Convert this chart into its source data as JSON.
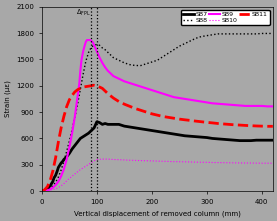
{
  "title": "",
  "xlabel": "Vertical displacement of removed column (mm)",
  "ylabel": "Strain (με)",
  "xlim": [
    0,
    420
  ],
  "ylim": [
    0,
    2100
  ],
  "xticks": [
    0,
    100,
    200,
    300,
    400
  ],
  "yticks": [
    0,
    300,
    600,
    900,
    1200,
    1500,
    1800,
    2100
  ],
  "vline_x1": 90,
  "vline_x2": 100,
  "vline_label": "Δ_FPL",
  "background_color": "#a8a8a8",
  "series": {
    "SB7": {
      "color": "#000000",
      "lw": 2.0,
      "ls": "solid",
      "x": [
        0,
        5,
        10,
        15,
        20,
        22,
        25,
        28,
        30,
        35,
        38,
        40,
        45,
        50,
        55,
        60,
        65,
        70,
        75,
        80,
        85,
        90,
        95,
        100,
        105,
        110,
        115,
        120,
        130,
        140,
        150,
        160,
        170,
        180,
        190,
        200,
        210,
        220,
        230,
        240,
        250,
        260,
        270,
        280,
        290,
        300,
        310,
        320,
        330,
        340,
        350,
        360,
        370,
        380,
        390,
        400,
        410,
        420
      ],
      "y": [
        0,
        10,
        30,
        60,
        110,
        150,
        180,
        230,
        270,
        320,
        340,
        360,
        390,
        430,
        480,
        520,
        560,
        600,
        620,
        640,
        660,
        690,
        720,
        790,
        780,
        760,
        770,
        760,
        760,
        760,
        740,
        730,
        720,
        710,
        700,
        690,
        680,
        670,
        660,
        650,
        640,
        630,
        625,
        620,
        615,
        610,
        600,
        595,
        590,
        585,
        580,
        575,
        575,
        575,
        580,
        580,
        580,
        580
      ]
    },
    "SB8": {
      "color": "#000000",
      "lw": 1.0,
      "ls": "dotted",
      "x": [
        0,
        5,
        10,
        15,
        20,
        25,
        30,
        35,
        40,
        45,
        50,
        55,
        60,
        65,
        70,
        75,
        80,
        85,
        90,
        95,
        100,
        105,
        110,
        115,
        120,
        130,
        140,
        150,
        160,
        170,
        180,
        190,
        200,
        210,
        220,
        230,
        240,
        250,
        260,
        270,
        280,
        290,
        300,
        310,
        320,
        330,
        340,
        350,
        360,
        370,
        380,
        390,
        400,
        410,
        420
      ],
      "y": [
        0,
        5,
        15,
        30,
        60,
        100,
        160,
        240,
        340,
        450,
        570,
        700,
        840,
        990,
        1160,
        1330,
        1480,
        1580,
        1640,
        1660,
        1670,
        1660,
        1630,
        1610,
        1580,
        1520,
        1490,
        1460,
        1440,
        1430,
        1430,
        1450,
        1470,
        1490,
        1530,
        1570,
        1610,
        1650,
        1680,
        1710,
        1740,
        1760,
        1770,
        1780,
        1790,
        1790,
        1790,
        1790,
        1790,
        1790,
        1790,
        1790,
        1795,
        1795,
        1795
      ]
    },
    "SB9": {
      "color": "#ff00ff",
      "lw": 1.5,
      "ls": "solid",
      "x": [
        0,
        5,
        10,
        15,
        20,
        25,
        30,
        35,
        40,
        45,
        50,
        55,
        60,
        65,
        68,
        70,
        72,
        75,
        78,
        80,
        82,
        85,
        88,
        90,
        93,
        95,
        100,
        105,
        110,
        115,
        120,
        130,
        140,
        150,
        160,
        170,
        180,
        190,
        200,
        210,
        220,
        230,
        240,
        250,
        260,
        270,
        280,
        290,
        300,
        310,
        320,
        330,
        340,
        350,
        360,
        370,
        380,
        390,
        400,
        410,
        420
      ],
      "y": [
        0,
        5,
        10,
        20,
        40,
        70,
        110,
        170,
        250,
        360,
        500,
        660,
        850,
        1080,
        1220,
        1370,
        1490,
        1590,
        1660,
        1700,
        1720,
        1720,
        1720,
        1710,
        1690,
        1660,
        1590,
        1520,
        1460,
        1410,
        1370,
        1310,
        1280,
        1250,
        1230,
        1210,
        1190,
        1170,
        1150,
        1130,
        1110,
        1090,
        1070,
        1060,
        1050,
        1040,
        1030,
        1020,
        1010,
        1000,
        995,
        990,
        985,
        980,
        975,
        970,
        970,
        970,
        970,
        965,
        965
      ]
    },
    "SB10": {
      "color": "#ff00ff",
      "lw": 0.8,
      "ls": "dotted",
      "x": [
        0,
        5,
        10,
        15,
        20,
        25,
        30,
        35,
        40,
        45,
        50,
        55,
        60,
        65,
        70,
        75,
        80,
        85,
        90,
        95,
        100,
        110,
        120,
        130,
        140,
        150,
        160,
        170,
        180,
        190,
        200,
        210,
        220,
        230,
        240,
        250,
        260,
        270,
        280,
        290,
        300,
        310,
        320,
        330,
        340,
        350,
        360,
        370,
        380,
        390,
        400,
        410,
        420
      ],
      "y": [
        0,
        3,
        8,
        12,
        18,
        25,
        40,
        60,
        85,
        115,
        145,
        170,
        195,
        220,
        245,
        265,
        285,
        305,
        325,
        345,
        360,
        365,
        365,
        360,
        358,
        355,
        352,
        350,
        348,
        346,
        344,
        342,
        340,
        338,
        336,
        335,
        334,
        332,
        330,
        329,
        328,
        326,
        325,
        324,
        323,
        322,
        321,
        320,
        320,
        319,
        318,
        318,
        318
      ]
    },
    "SB11": {
      "color": "#ff0000",
      "lw": 2.0,
      "ls": "dashed",
      "x": [
        0,
        5,
        10,
        15,
        20,
        25,
        30,
        35,
        40,
        45,
        50,
        55,
        60,
        65,
        70,
        75,
        80,
        85,
        90,
        93,
        95,
        100,
        105,
        110,
        120,
        130,
        140,
        150,
        160,
        170,
        180,
        190,
        200,
        210,
        220,
        230,
        240,
        250,
        260,
        270,
        280,
        290,
        300,
        310,
        320,
        330,
        340,
        350,
        360,
        370,
        380,
        390,
        400,
        410,
        420
      ],
      "y": [
        0,
        15,
        50,
        120,
        230,
        380,
        560,
        720,
        850,
        960,
        1040,
        1090,
        1130,
        1155,
        1170,
        1185,
        1190,
        1195,
        1200,
        1205,
        1205,
        1200,
        1185,
        1170,
        1110,
        1060,
        1020,
        990,
        965,
        940,
        920,
        900,
        880,
        865,
        850,
        840,
        830,
        820,
        812,
        805,
        797,
        790,
        783,
        777,
        770,
        765,
        760,
        755,
        752,
        748,
        745,
        742,
        740,
        738,
        738
      ]
    }
  }
}
